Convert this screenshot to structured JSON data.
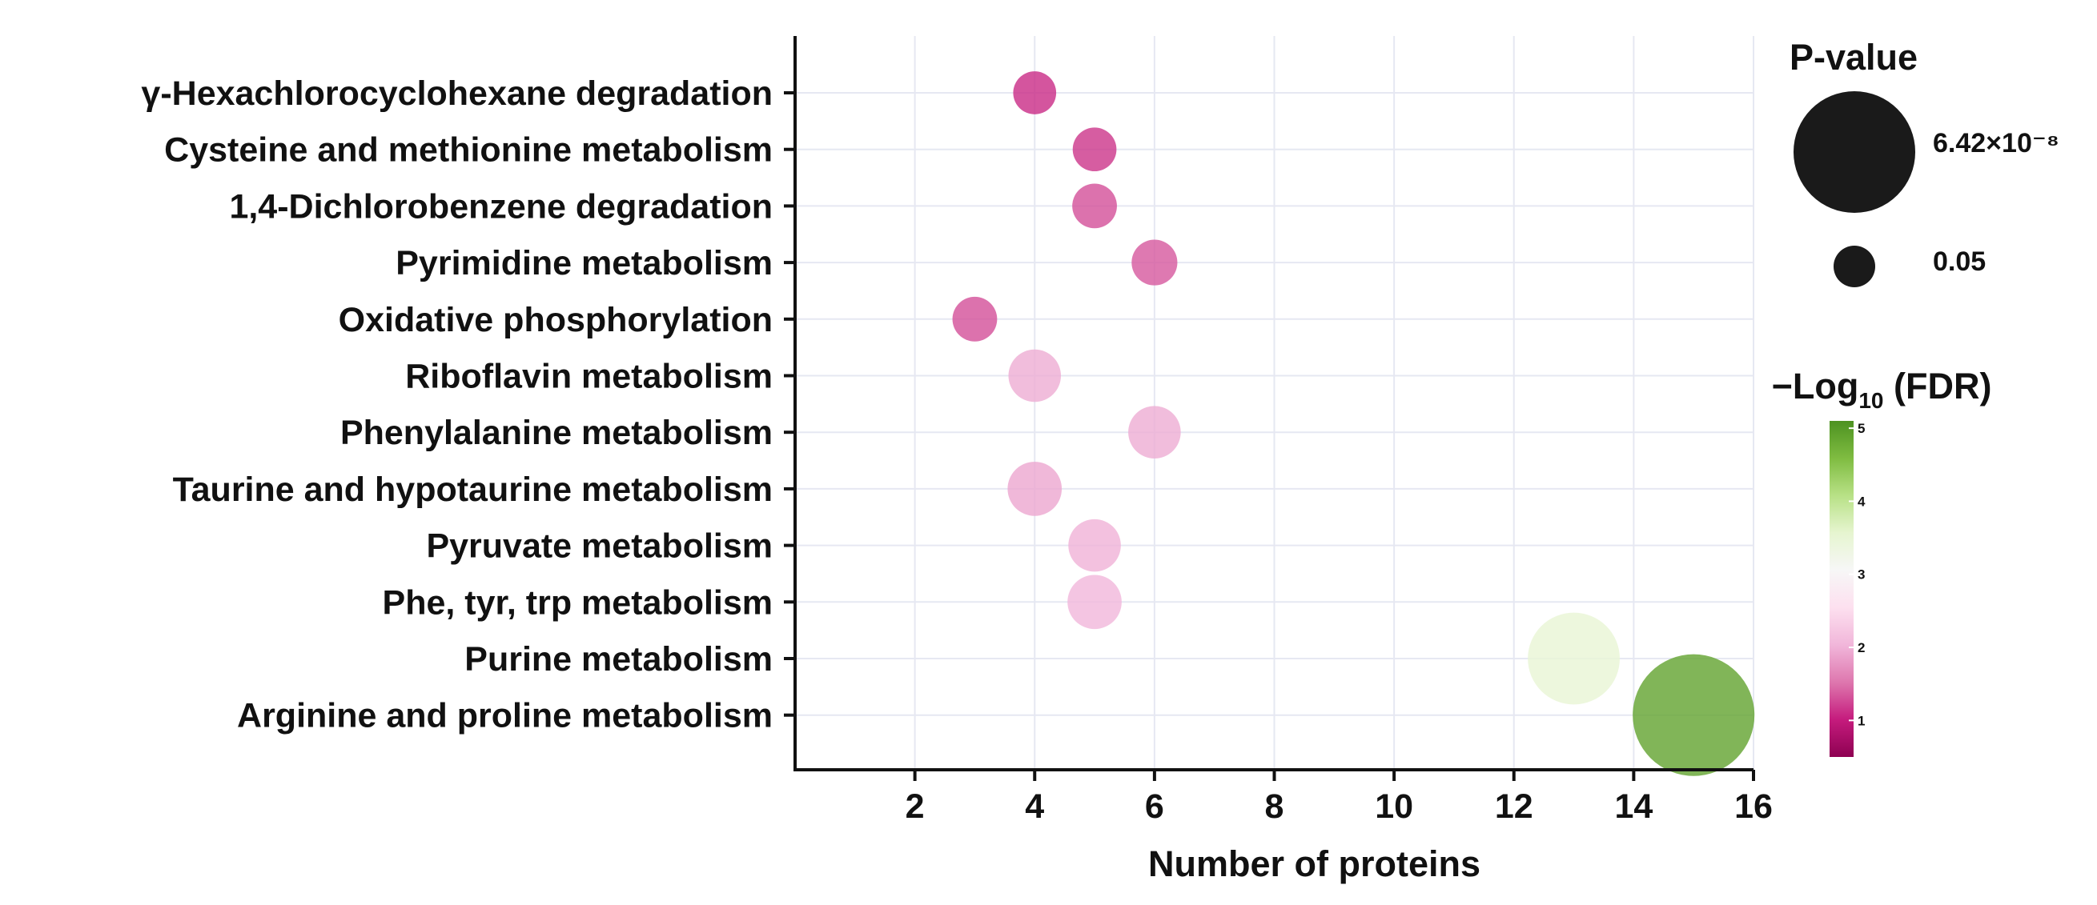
{
  "chart_data": {
    "type": "scatter",
    "subtype": "bubble",
    "xlabel": "Number of proteins",
    "ylabel": "",
    "xlim": [
      0,
      16
    ],
    "xticks": [
      2,
      4,
      6,
      8,
      10,
      12,
      14,
      16
    ],
    "grid": true,
    "categories": [
      "γ-Hexachlorocyclohexane degradation",
      "Cysteine and methionine metabolism",
      "1,4-Dichlorobenzene degradation",
      "Pyrimidine metabolism",
      "Oxidative phosphorylation",
      "Riboflavin metabolism",
      "Phenylalanine metabolism",
      "Taurine and hypotaurine metabolism",
      "Pyruvate metabolism",
      "Phe, tyr, trp metabolism",
      "Purine metabolism",
      "Arginine and proline metabolism"
    ],
    "points": [
      {
        "category": "γ-Hexachlorocyclohexane degradation",
        "x": 4,
        "neg_log10_fdr": 1.1,
        "p_value": 0.04
      },
      {
        "category": "Cysteine and methionine metabolism",
        "x": 5,
        "neg_log10_fdr": 1.15,
        "p_value": 0.035
      },
      {
        "category": "1,4-Dichlorobenzene degradation",
        "x": 5,
        "neg_log10_fdr": 1.3,
        "p_value": 0.03
      },
      {
        "category": "Pyrimidine metabolism",
        "x": 6,
        "neg_log10_fdr": 1.35,
        "p_value": 0.025
      },
      {
        "category": "Oxidative phosphorylation",
        "x": 3,
        "neg_log10_fdr": 1.3,
        "p_value": 0.03
      },
      {
        "category": "Riboflavin metabolism",
        "x": 4,
        "neg_log10_fdr": 1.95,
        "p_value": 0.008
      },
      {
        "category": "Phenylalanine metabolism",
        "x": 6,
        "neg_log10_fdr": 1.95,
        "p_value": 0.008
      },
      {
        "category": "Taurine and hypotaurine metabolism",
        "x": 4,
        "neg_log10_fdr": 1.9,
        "p_value": 0.006
      },
      {
        "category": "Pyruvate metabolism",
        "x": 5,
        "neg_log10_fdr": 2.0,
        "p_value": 0.008
      },
      {
        "category": "Phe, tyr, trp metabolism",
        "x": 5,
        "neg_log10_fdr": 2.05,
        "p_value": 0.006
      },
      {
        "category": "Purine metabolism",
        "x": 13,
        "neg_log10_fdr": 3.5,
        "p_value": 1e-05
      },
      {
        "category": "Arginine and proline metabolism",
        "x": 15,
        "neg_log10_fdr": 4.9,
        "p_value": 6.42e-08
      }
    ],
    "size_legend": {
      "title": "P-value",
      "entries": [
        {
          "label": "6.42×10⁻⁸",
          "p_value": 6.42e-08
        },
        {
          "label": "0.05",
          "p_value": 0.05
        }
      ]
    },
    "color_legend": {
      "title_prefix": "−Log",
      "title_subscript": "10",
      "title_suffix": " (FDR)",
      "min": 0.5,
      "max": 5.1,
      "ticks": [
        {
          "label": "1",
          "value": 1
        },
        {
          "label": "2",
          "value": 2
        },
        {
          "label": "3",
          "value": 3
        },
        {
          "label": "4",
          "value": 4
        },
        {
          "label": "5",
          "value": 5
        }
      ],
      "colors": [
        "#8e0152",
        "#c51b7d",
        "#de77ae",
        "#f1b6da",
        "#fde0ef",
        "#f7f7f7",
        "#e6f5d0",
        "#b8e186",
        "#7fbc41",
        "#4d9221"
      ]
    },
    "bubble_opacity": 0.8
  }
}
